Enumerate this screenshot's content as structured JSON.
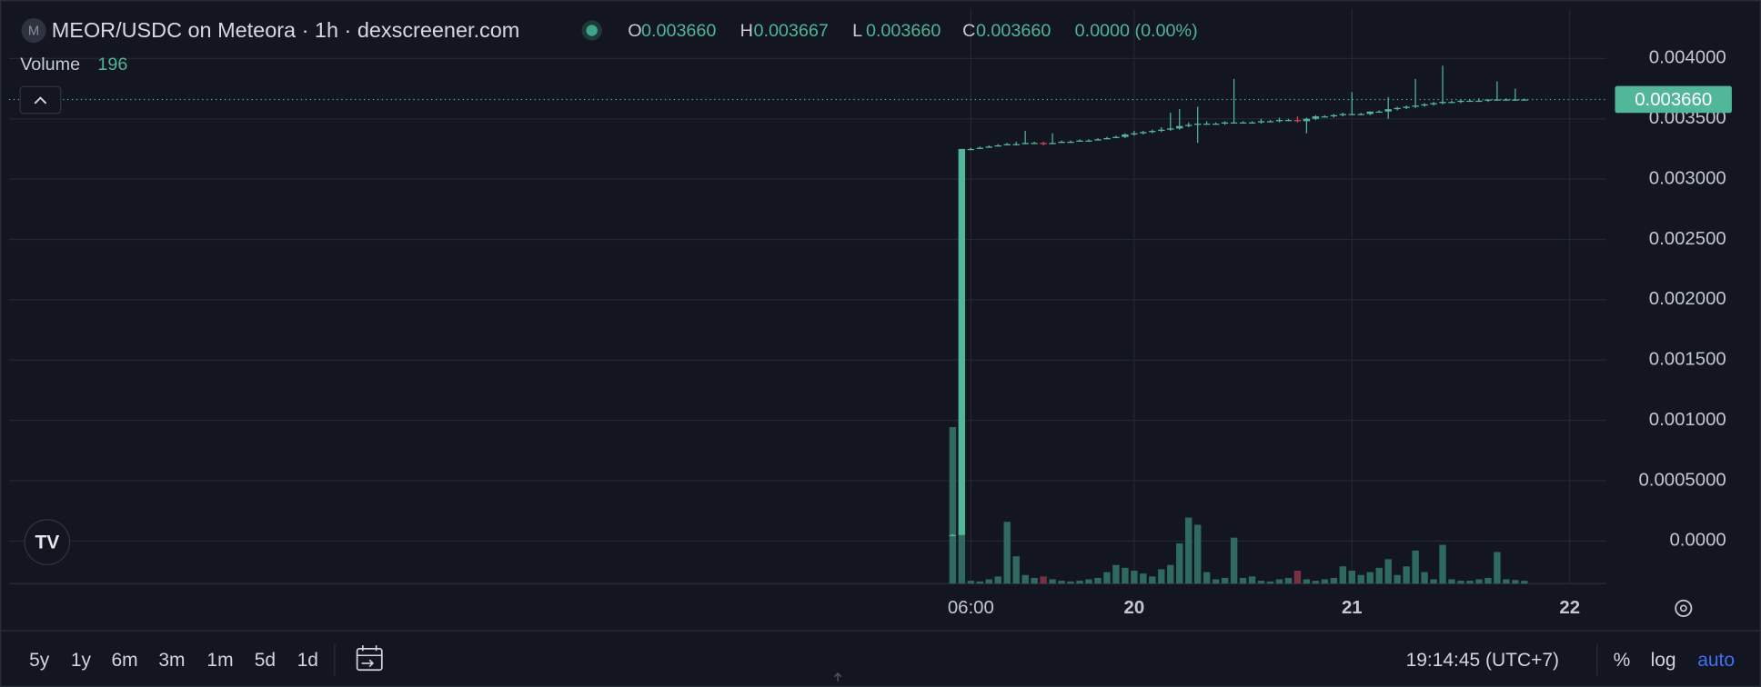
{
  "chart_data": {
    "type": "candlestick",
    "title": "MEOR/USDC on Meteora · 1h · dexscreener.com",
    "icon_letter": "M",
    "ohlc_legend": [
      {
        "key": "O",
        "value": "0.003660"
      },
      {
        "key": "H",
        "value": "0.003667"
      },
      {
        "key": "L",
        "value": "0.003660"
      },
      {
        "key": "C",
        "value": "0.003660"
      }
    ],
    "change": "0.0000 (0.00%)",
    "volume_label": "Volume",
    "x": [
      -20,
      -19,
      -18,
      -17,
      -16,
      -15,
      -14,
      -13,
      -12,
      -11,
      -10,
      -9,
      -8,
      -7,
      -6,
      -5,
      -4,
      -3,
      -2,
      -1,
      0,
      1,
      2,
      3,
      4,
      5,
      6,
      7,
      8,
      9,
      10,
      11,
      12,
      13,
      14,
      15,
      16,
      17,
      18,
      19,
      20,
      21,
      22,
      23,
      24,
      25,
      26,
      27,
      28,
      29,
      30,
      31,
      32,
      33,
      34,
      35,
      36,
      37,
      38,
      39,
      40,
      41,
      42,
      43
    ],
    "open": [
      4e-05,
      5e-05,
      0.00325,
      0.00325,
      0.00326,
      0.00327,
      0.00328,
      0.00329,
      0.00329,
      0.0033,
      0.0033,
      0.00329,
      0.0033,
      0.00331,
      0.00331,
      0.00332,
      0.00332,
      0.00333,
      0.00334,
      0.00335,
      0.00337,
      0.00338,
      0.00339,
      0.0034,
      0.00341,
      0.00342,
      0.00344,
      0.00345,
      0.00346,
      0.00346,
      0.00346,
      0.00347,
      0.00347,
      0.00347,
      0.00347,
      0.00348,
      0.00348,
      0.00349,
      0.00349,
      0.00348,
      0.0035,
      0.00352,
      0.00352,
      0.00353,
      0.00354,
      0.00354,
      0.00354,
      0.00356,
      0.00356,
      0.00358,
      0.00359,
      0.0036,
      0.00361,
      0.00362,
      0.00363,
      0.00364,
      0.00364,
      0.00365,
      0.00365,
      0.00365,
      0.00366,
      0.00366,
      0.00366,
      0.00366
    ],
    "high": [
      6e-05,
      0.00325,
      0.00326,
      0.00327,
      0.00328,
      0.00329,
      0.0033,
      0.00331,
      0.0034,
      0.00331,
      0.00331,
      0.00338,
      0.00332,
      0.00332,
      0.00333,
      0.00333,
      0.00334,
      0.00335,
      0.00336,
      0.00338,
      0.0034,
      0.0034,
      0.00341,
      0.00343,
      0.00355,
      0.00358,
      0.00347,
      0.0036,
      0.00348,
      0.00347,
      0.00348,
      0.00383,
      0.00348,
      0.00348,
      0.0035,
      0.00349,
      0.00351,
      0.0035,
      0.00352,
      0.00351,
      0.00353,
      0.00353,
      0.00354,
      0.00355,
      0.00372,
      0.00355,
      0.00356,
      0.00357,
      0.00368,
      0.0036,
      0.00361,
      0.00383,
      0.00363,
      0.00364,
      0.00394,
      0.00365,
      0.00366,
      0.00366,
      0.00367,
      0.00366,
      0.00381,
      0.00367,
      0.00375,
      0.003667
    ],
    "low": [
      4e-05,
      5e-05,
      0.00324,
      0.00325,
      0.00326,
      0.00327,
      0.00328,
      0.00328,
      0.00329,
      0.00329,
      0.00328,
      0.00329,
      0.0033,
      0.0033,
      0.00331,
      0.00331,
      0.00332,
      0.00333,
      0.00334,
      0.00334,
      0.00336,
      0.00337,
      0.00338,
      0.00339,
      0.0034,
      0.00341,
      0.00343,
      0.0033,
      0.00345,
      0.00345,
      0.00345,
      0.00346,
      0.00346,
      0.00346,
      0.00346,
      0.00347,
      0.00347,
      0.00348,
      0.00347,
      0.00338,
      0.00349,
      0.00351,
      0.00351,
      0.00352,
      0.00353,
      0.00353,
      0.00353,
      0.00355,
      0.0035,
      0.00357,
      0.00358,
      0.00359,
      0.0036,
      0.00361,
      0.00362,
      0.00363,
      0.00363,
      0.00364,
      0.00364,
      0.00364,
      0.00365,
      0.00365,
      0.00365,
      0.00366
    ],
    "close": [
      5e-05,
      0.00325,
      0.00325,
      0.00326,
      0.00327,
      0.00328,
      0.00329,
      0.00329,
      0.0033,
      0.0033,
      0.00329,
      0.0033,
      0.00331,
      0.00331,
      0.00332,
      0.00332,
      0.00333,
      0.00334,
      0.00335,
      0.00337,
      0.00338,
      0.00339,
      0.0034,
      0.00341,
      0.00342,
      0.00344,
      0.00345,
      0.00346,
      0.00346,
      0.00346,
      0.00347,
      0.00347,
      0.00347,
      0.00347,
      0.00348,
      0.00348,
      0.00349,
      0.00349,
      0.00348,
      0.0035,
      0.00352,
      0.00352,
      0.00353,
      0.00354,
      0.00354,
      0.00354,
      0.00356,
      0.00356,
      0.00358,
      0.00359,
      0.0036,
      0.00361,
      0.00362,
      0.00363,
      0.00364,
      0.00364,
      0.00365,
      0.00365,
      0.00365,
      0.00366,
      0.00366,
      0.00366,
      0.00366,
      0.00366
    ],
    "volume": [
      10900,
      3600,
      200,
      150,
      300,
      500,
      4300,
      1900,
      600,
      400,
      500,
      300,
      200,
      150,
      200,
      300,
      400,
      800,
      1300,
      1100,
      900,
      700,
      500,
      1000,
      1300,
      2800,
      4600,
      4100,
      800,
      300,
      400,
      3200,
      400,
      500,
      200,
      150,
      300,
      400,
      900,
      300,
      200,
      300,
      400,
      1200,
      900,
      600,
      800,
      1100,
      1700,
      600,
      1200,
      2300,
      800,
      300,
      2700,
      300,
      200,
      200,
      300,
      400,
      2200,
      300,
      250,
      196
    ],
    "volume_lim": [
      0,
      40000
    ],
    "xlim": [
      -124,
      52
    ],
    "xticks": [
      {
        "value": -18,
        "label": "06:00"
      },
      {
        "value": 0,
        "label": "20"
      },
      {
        "value": 24,
        "label": "21"
      },
      {
        "value": 48,
        "label": "22"
      }
    ],
    "ylim": [
      -0.000353,
      0.004409
    ],
    "yticks": [
      {
        "value": 0,
        "label": "0.0000"
      },
      {
        "value": 0.0005,
        "label": "0.0005000"
      },
      {
        "value": 0.001,
        "label": "0.001000"
      },
      {
        "value": 0.0015,
        "label": "0.001500"
      },
      {
        "value": 0.002,
        "label": "0.002000"
      },
      {
        "value": 0.0025,
        "label": "0.002500"
      },
      {
        "value": 0.003,
        "label": "0.003000"
      },
      {
        "value": 0.0035,
        "label": "0.003500"
      },
      {
        "value": 0.004,
        "label": "0.004000"
      }
    ],
    "last_price": {
      "value": 0.00366,
      "label": "0.003660"
    },
    "grid": true,
    "log_scale": false,
    "up_color": "#52b69a",
    "down_color": "#c9485a",
    "volume_up_color": "#2f6f63",
    "volume_down_color": "#7c3342"
  },
  "toolbar": {
    "ranges": [
      "5y",
      "1y",
      "6m",
      "3m",
      "1m",
      "5d",
      "1d"
    ],
    "clock": "19:14:45 (UTC+7)",
    "percent": "%",
    "log": "log",
    "auto": "auto"
  }
}
